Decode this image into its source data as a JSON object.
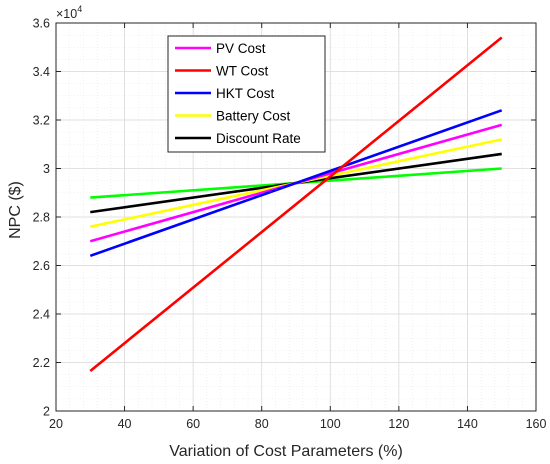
{
  "chart_data": {
    "type": "line",
    "xlabel": "Variation of Cost Parameters (%)",
    "ylabel": "NPC ($)",
    "xlim": [
      20,
      160
    ],
    "ylim": [
      2.0,
      3.6
    ],
    "x_ticks": [
      "20",
      "40",
      "60",
      "80",
      "100",
      "120",
      "140",
      "160"
    ],
    "y_ticks": [
      "2",
      "2.2",
      "2.4",
      "2.6",
      "2.8",
      "3",
      "3.2",
      "3.4",
      "3.6"
    ],
    "y_multiplier": {
      "base": "×10",
      "exponent": "4"
    },
    "grid": true,
    "minor_grid": true,
    "legend_position": "top-center",
    "series": [
      {
        "name": "PV Cost",
        "color": "#ff00ff",
        "x": [
          30,
          150
        ],
        "y": [
          2.7,
          3.18
        ]
      },
      {
        "name": "WT Cost",
        "color": "#ff0000",
        "x": [
          30,
          150
        ],
        "y": [
          2.165,
          3.54
        ]
      },
      {
        "name": "HKT Cost",
        "color": "#0000ff",
        "x": [
          30,
          150
        ],
        "y": [
          2.64,
          3.24
        ]
      },
      {
        "name": "Battery Cost",
        "color": "#ffff00",
        "x": [
          30,
          150
        ],
        "y": [
          2.76,
          3.12
        ]
      },
      {
        "name": "Discount Rate",
        "color": "#000000",
        "x": [
          30,
          150
        ],
        "y": [
          2.82,
          3.06
        ]
      },
      {
        "color": "#00ff00",
        "x": [
          30,
          150
        ],
        "y": [
          2.88,
          3.0
        ]
      }
    ]
  }
}
